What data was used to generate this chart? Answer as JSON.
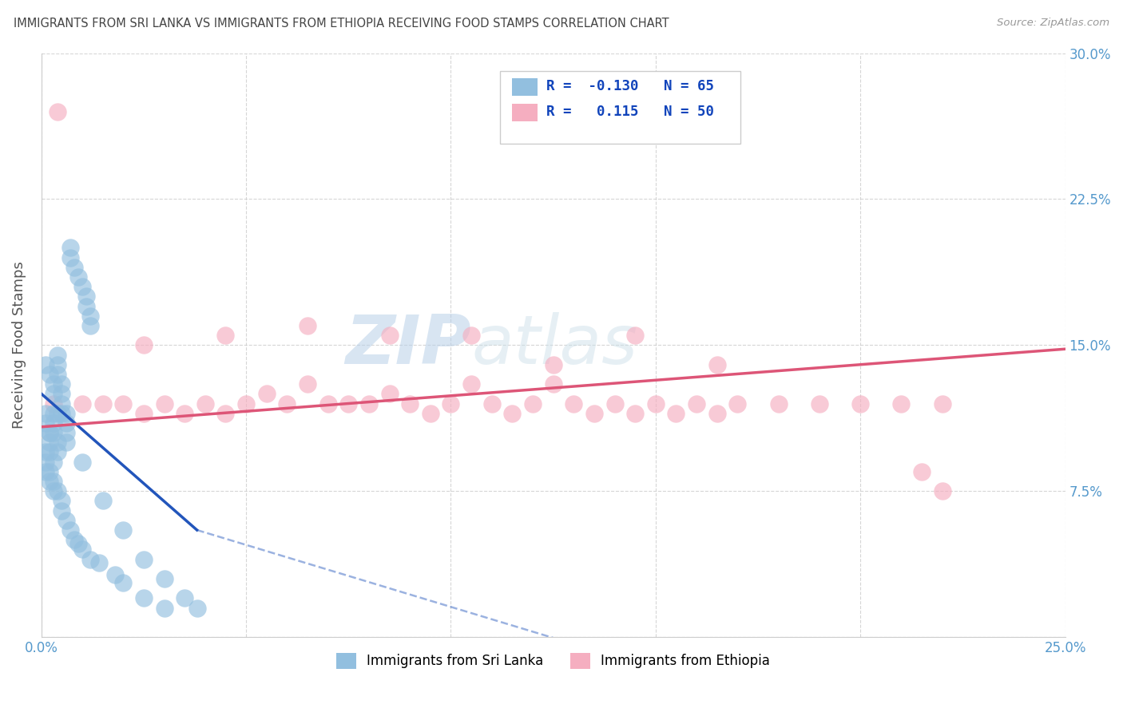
{
  "title": "IMMIGRANTS FROM SRI LANKA VS IMMIGRANTS FROM ETHIOPIA RECEIVING FOOD STAMPS CORRELATION CHART",
  "source": "Source: ZipAtlas.com",
  "ylabel_label": "Receiving Food Stamps",
  "xlim": [
    0.0,
    0.25
  ],
  "ylim": [
    0.0,
    0.3
  ],
  "xticks": [
    0.0,
    0.05,
    0.1,
    0.15,
    0.2,
    0.25
  ],
  "yticks": [
    0.0,
    0.075,
    0.15,
    0.225,
    0.3
  ],
  "sri_lanka_color": "#92bfdf",
  "ethiopia_color": "#f5aec0",
  "sri_lanka_line_color": "#2255bb",
  "ethiopia_line_color": "#dd5577",
  "sri_lanka_R": -0.13,
  "sri_lanka_N": 65,
  "ethiopia_R": 0.115,
  "ethiopia_N": 50,
  "legend_label_1": "Immigrants from Sri Lanka",
  "legend_label_2": "Immigrants from Ethiopia",
  "watermark_zip": "ZIP",
  "watermark_atlas": "atlas",
  "background_color": "#ffffff",
  "grid_color": "#cccccc",
  "title_color": "#444444",
  "tick_label_color": "#5599cc",
  "sri_lanka_x": [
    0.007,
    0.007,
    0.008,
    0.009,
    0.01,
    0.011,
    0.011,
    0.012,
    0.012,
    0.004,
    0.004,
    0.004,
    0.005,
    0.005,
    0.005,
    0.006,
    0.006,
    0.006,
    0.003,
    0.003,
    0.003,
    0.004,
    0.004,
    0.002,
    0.002,
    0.002,
    0.003,
    0.001,
    0.001,
    0.002,
    0.001,
    0.001,
    0.001,
    0.002,
    0.002,
    0.003,
    0.003,
    0.004,
    0.005,
    0.005,
    0.006,
    0.007,
    0.008,
    0.009,
    0.01,
    0.012,
    0.014,
    0.018,
    0.02,
    0.025,
    0.03,
    0.003,
    0.005,
    0.01,
    0.015,
    0.02,
    0.025,
    0.03,
    0.035,
    0.038,
    0.001,
    0.002,
    0.003,
    0.004,
    0.006
  ],
  "sri_lanka_y": [
    0.2,
    0.195,
    0.19,
    0.185,
    0.18,
    0.175,
    0.17,
    0.165,
    0.16,
    0.145,
    0.14,
    0.135,
    0.13,
    0.125,
    0.12,
    0.115,
    0.11,
    0.105,
    0.115,
    0.11,
    0.105,
    0.1,
    0.095,
    0.105,
    0.1,
    0.095,
    0.09,
    0.115,
    0.11,
    0.105,
    0.095,
    0.09,
    0.085,
    0.085,
    0.08,
    0.08,
    0.075,
    0.075,
    0.07,
    0.065,
    0.06,
    0.055,
    0.05,
    0.048,
    0.045,
    0.04,
    0.038,
    0.032,
    0.028,
    0.02,
    0.015,
    0.13,
    0.115,
    0.09,
    0.07,
    0.055,
    0.04,
    0.03,
    0.02,
    0.015,
    0.14,
    0.135,
    0.125,
    0.115,
    0.1
  ],
  "ethiopia_x": [
    0.003,
    0.01,
    0.02,
    0.03,
    0.04,
    0.05,
    0.06,
    0.07,
    0.08,
    0.09,
    0.1,
    0.11,
    0.12,
    0.13,
    0.14,
    0.15,
    0.16,
    0.17,
    0.18,
    0.19,
    0.2,
    0.21,
    0.22,
    0.015,
    0.025,
    0.035,
    0.045,
    0.055,
    0.065,
    0.075,
    0.085,
    0.095,
    0.105,
    0.115,
    0.125,
    0.135,
    0.145,
    0.155,
    0.165,
    0.025,
    0.045,
    0.065,
    0.085,
    0.105,
    0.125,
    0.145,
    0.165,
    0.004,
    0.22,
    0.215
  ],
  "ethiopia_y": [
    0.12,
    0.12,
    0.12,
    0.12,
    0.12,
    0.12,
    0.12,
    0.12,
    0.12,
    0.12,
    0.12,
    0.12,
    0.12,
    0.12,
    0.12,
    0.12,
    0.12,
    0.12,
    0.12,
    0.12,
    0.12,
    0.12,
    0.12,
    0.12,
    0.115,
    0.115,
    0.115,
    0.125,
    0.13,
    0.12,
    0.125,
    0.115,
    0.13,
    0.115,
    0.13,
    0.115,
    0.115,
    0.115,
    0.115,
    0.15,
    0.155,
    0.16,
    0.155,
    0.155,
    0.14,
    0.155,
    0.14,
    0.27,
    0.075,
    0.085
  ]
}
